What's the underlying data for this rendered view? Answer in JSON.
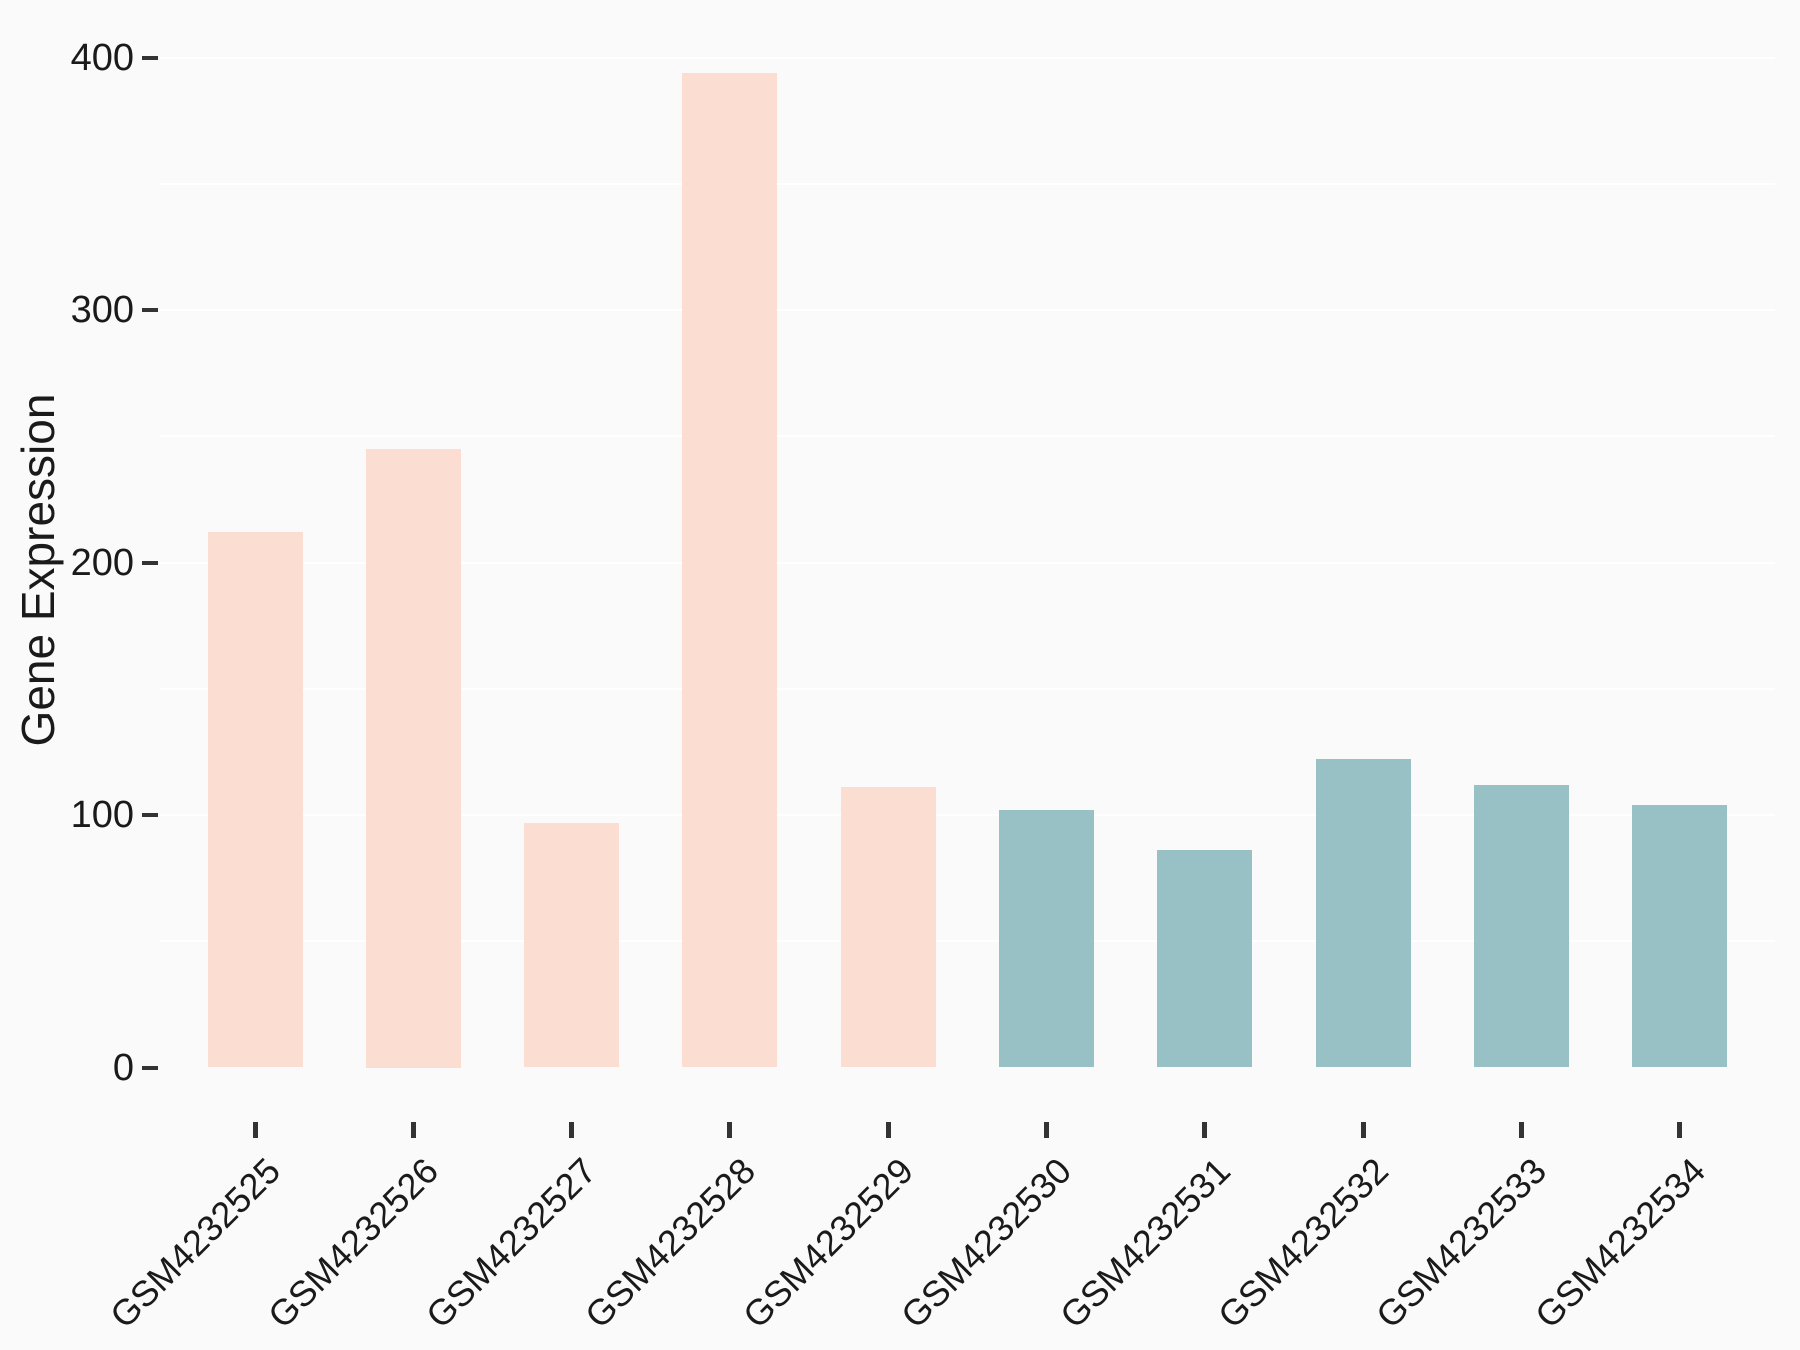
{
  "figure": {
    "background_color": "#fafafa",
    "gridline_color": "#ffffff",
    "text_color": "#1a1a1a",
    "tick_mark_color": "#333333"
  },
  "chart_data": {
    "type": "bar",
    "title": "",
    "xlabel": "",
    "ylabel": "Gene Expression",
    "categories": [
      "GSM4232525",
      "GSM4232526",
      "GSM4232527",
      "GSM4232528",
      "GSM4232529",
      "GSM4232530",
      "GSM4232531",
      "GSM4232532",
      "GSM4232533",
      "GSM4232534"
    ],
    "values": [
      212,
      245,
      97,
      394,
      111,
      102,
      86,
      122,
      112,
      104
    ],
    "groups": [
      "pink",
      "pink",
      "pink",
      "pink",
      "pink",
      "teal",
      "teal",
      "teal",
      "teal",
      "teal"
    ],
    "group_colors": {
      "pink": "#fcddd1",
      "teal": "#98c1c5"
    },
    "y_ticks": [
      0,
      100,
      200,
      300,
      400
    ],
    "y_tick_labels": [
      "0",
      "100",
      "200",
      "300",
      "400"
    ],
    "y_minor_gridlines": [
      50,
      150,
      250,
      350
    ],
    "ylim": [
      -20,
      413
    ],
    "grid": "on-white-major-and-minor",
    "legend": "none",
    "x_tick_label_rotation_deg": 45
  }
}
